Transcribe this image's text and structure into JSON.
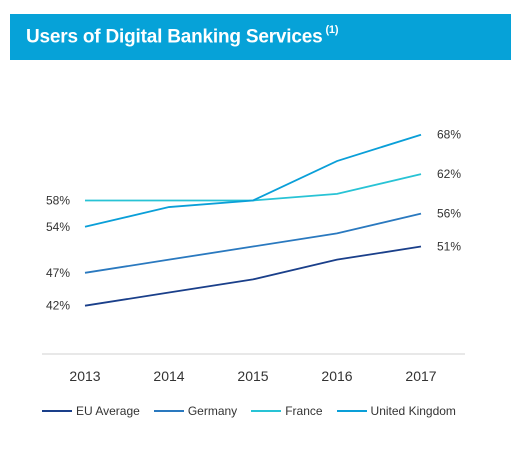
{
  "header": {
    "title": "Users of Digital Banking Services",
    "footnote": "(1)",
    "color": "#06a2d8"
  },
  "chart_data": {
    "type": "line",
    "title": "Users of Digital Banking Services (1)",
    "x": [
      "2013",
      "2014",
      "2015",
      "2016",
      "2017"
    ],
    "ylim": [
      38,
      71
    ],
    "grid": false,
    "legend_position": "bottom",
    "series": [
      {
        "name": "EU Average",
        "color": "#1a3f8a",
        "values": [
          42,
          44,
          46,
          49,
          51
        ]
      },
      {
        "name": "Germany",
        "color": "#2a79bf",
        "values": [
          47,
          49,
          51,
          53,
          56
        ]
      },
      {
        "name": "France",
        "color": "#28c3d5",
        "values": [
          58,
          58,
          58,
          59,
          62
        ]
      },
      {
        "name": "United Kingdom",
        "color": "#0a9fd8",
        "values": [
          54,
          57,
          58,
          64,
          68
        ]
      }
    ],
    "start_labels": [
      {
        "series": "France",
        "text": "58%"
      },
      {
        "series": "United Kingdom",
        "text": "54%"
      },
      {
        "series": "Germany",
        "text": "47%"
      },
      {
        "series": "EU Average",
        "text": "42%"
      }
    ],
    "end_labels": [
      {
        "series": "United Kingdom",
        "text": "68%"
      },
      {
        "series": "France",
        "text": "62%"
      },
      {
        "series": "Germany",
        "text": "56%"
      },
      {
        "series": "EU Average",
        "text": "51%"
      }
    ]
  }
}
